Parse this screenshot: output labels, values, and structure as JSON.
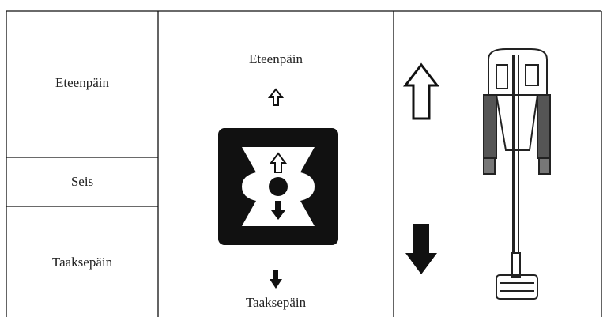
{
  "left_column": [
    "Eteenpäin",
    "Seis",
    "Taaksepäin"
  ],
  "symbol": {
    "forward_label": "Eteenpäin",
    "reverse_label": "Taaksepäin"
  }
}
